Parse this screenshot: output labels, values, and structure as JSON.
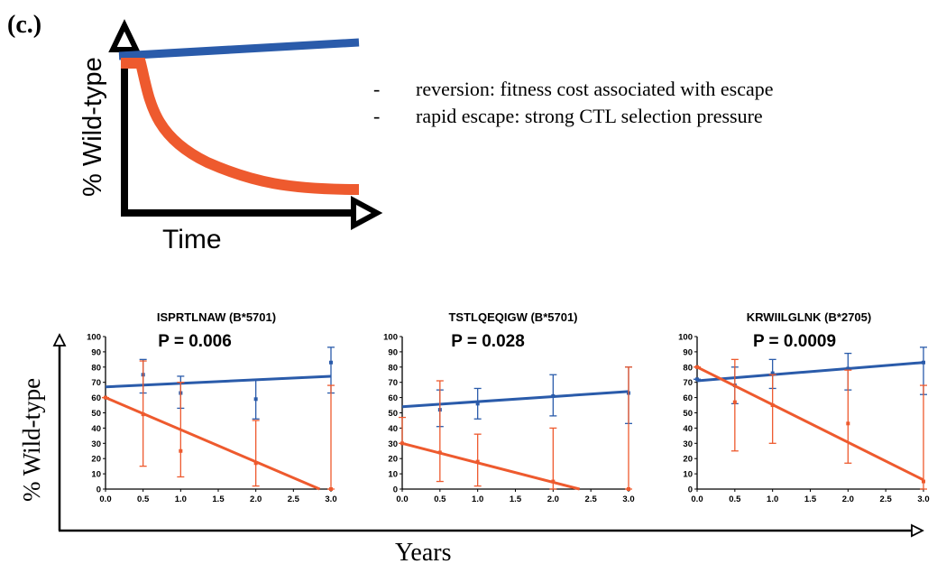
{
  "panel_label": "(c.)",
  "schematic": {
    "ylabel": "% Wild-type",
    "xlabel": "Time",
    "notes": [
      "reversion: fitness cost associated with escape",
      "rapid escape: strong CTL selection pressure"
    ],
    "note_bullet": "-"
  },
  "colors": {
    "blue": "#2A5BAA",
    "orange": "#EE5A2E"
  },
  "axes": {
    "ylabel": "% Wild-type",
    "xlabel": "Years"
  },
  "chart_data": [
    {
      "type": "scatter",
      "title": "ISPRTLNAW (B*5701)",
      "annotation": "P = 0.006",
      "xlim": [
        0,
        3
      ],
      "ylim": [
        0,
        100
      ],
      "xticks": [
        "0.0",
        "0.5",
        "1.0",
        "1.5",
        "2.0",
        "2.5",
        "3.0"
      ],
      "yticks": [
        "0",
        "10",
        "20",
        "30",
        "40",
        "50",
        "60",
        "70",
        "80",
        "90",
        "100"
      ],
      "series": [
        {
          "color": "blue",
          "points": [
            {
              "x": 0.5,
              "y": 75,
              "lo": 63,
              "hi": 85
            },
            {
              "x": 1.0,
              "y": 63,
              "lo": 53,
              "hi": 74
            },
            {
              "x": 2.0,
              "y": 59,
              "lo": 46,
              "hi": 72
            },
            {
              "x": 3.0,
              "y": 83,
              "lo": 63,
              "hi": 93
            }
          ],
          "fit": [
            [
              0,
              67
            ],
            [
              3,
              74
            ]
          ]
        },
        {
          "color": "orange",
          "points": [
            {
              "x": 0.0,
              "y": 60,
              "lo": 60,
              "hi": 60
            },
            {
              "x": 0.5,
              "y": 49,
              "lo": 15,
              "hi": 84
            },
            {
              "x": 1.0,
              "y": 25,
              "lo": 8,
              "hi": 70
            },
            {
              "x": 2.0,
              "y": 17,
              "lo": 2,
              "hi": 45
            },
            {
              "x": 3.0,
              "y": 0,
              "lo": 0,
              "hi": 68
            }
          ],
          "fit": [
            [
              0,
              60
            ],
            [
              2.85,
              0
            ]
          ]
        }
      ]
    },
    {
      "type": "scatter",
      "title": "TSTLQEQIGW (B*5701)",
      "annotation": "P = 0.028",
      "xlim": [
        0,
        3
      ],
      "ylim": [
        0,
        100
      ],
      "xticks": [
        "0.0",
        "0.5",
        "1.0",
        "1.5",
        "2.0",
        "2.5",
        "3.0"
      ],
      "yticks": [
        "0",
        "10",
        "20",
        "30",
        "40",
        "50",
        "60",
        "70",
        "80",
        "90",
        "100"
      ],
      "series": [
        {
          "color": "blue",
          "points": [
            {
              "x": 0.5,
              "y": 52,
              "lo": 41,
              "hi": 65
            },
            {
              "x": 1.0,
              "y": 56,
              "lo": 46,
              "hi": 66
            },
            {
              "x": 2.0,
              "y": 61,
              "lo": 48,
              "hi": 75
            },
            {
              "x": 3.0,
              "y": 63,
              "lo": 43,
              "hi": 80
            }
          ],
          "fit": [
            [
              0,
              54
            ],
            [
              3,
              64
            ]
          ]
        },
        {
          "color": "orange",
          "points": [
            {
              "x": 0.0,
              "y": 30,
              "lo": 30,
              "hi": 47
            },
            {
              "x": 0.5,
              "y": 24,
              "lo": 5,
              "hi": 71
            },
            {
              "x": 1.0,
              "y": 18,
              "lo": 2,
              "hi": 36
            },
            {
              "x": 2.0,
              "y": 5,
              "lo": 0,
              "hi": 40
            },
            {
              "x": 3.0,
              "y": 0,
              "lo": 0,
              "hi": 80
            }
          ],
          "fit": [
            [
              0,
              30
            ],
            [
              2.35,
              0
            ]
          ]
        }
      ]
    },
    {
      "type": "scatter",
      "title": "KRWIILGLNK (B*2705)",
      "annotation": "P = 0.0009",
      "xlim": [
        0,
        3
      ],
      "ylim": [
        0,
        100
      ],
      "xticks": [
        "0.0",
        "0.5",
        "1.0",
        "1.5",
        "2.0",
        "2.5",
        "3.0"
      ],
      "yticks": [
        "0",
        "10",
        "20",
        "30",
        "40",
        "50",
        "60",
        "70",
        "80",
        "90",
        "100"
      ],
      "series": [
        {
          "color": "blue",
          "points": [
            {
              "x": 0.0,
              "y": 72,
              "lo": 72,
              "hi": 72
            },
            {
              "x": 0.5,
              "y": 68,
              "lo": 56,
              "hi": 80
            },
            {
              "x": 1.0,
              "y": 76,
              "lo": 66,
              "hi": 85
            },
            {
              "x": 2.0,
              "y": 79,
              "lo": 65,
              "hi": 89
            },
            {
              "x": 3.0,
              "y": 83,
              "lo": 62,
              "hi": 93
            }
          ],
          "fit": [
            [
              0,
              71
            ],
            [
              3,
              83
            ]
          ]
        },
        {
          "color": "orange",
          "points": [
            {
              "x": 0.0,
              "y": 80,
              "lo": 80,
              "hi": 80
            },
            {
              "x": 0.5,
              "y": 57,
              "lo": 25,
              "hi": 85
            },
            {
              "x": 1.0,
              "y": 55,
              "lo": 30,
              "hi": 75
            },
            {
              "x": 2.0,
              "y": 43,
              "lo": 17,
              "hi": 78
            },
            {
              "x": 3.0,
              "y": 5,
              "lo": 0,
              "hi": 68
            }
          ],
          "fit": [
            [
              0,
              80
            ],
            [
              3,
              6
            ]
          ]
        }
      ]
    }
  ]
}
